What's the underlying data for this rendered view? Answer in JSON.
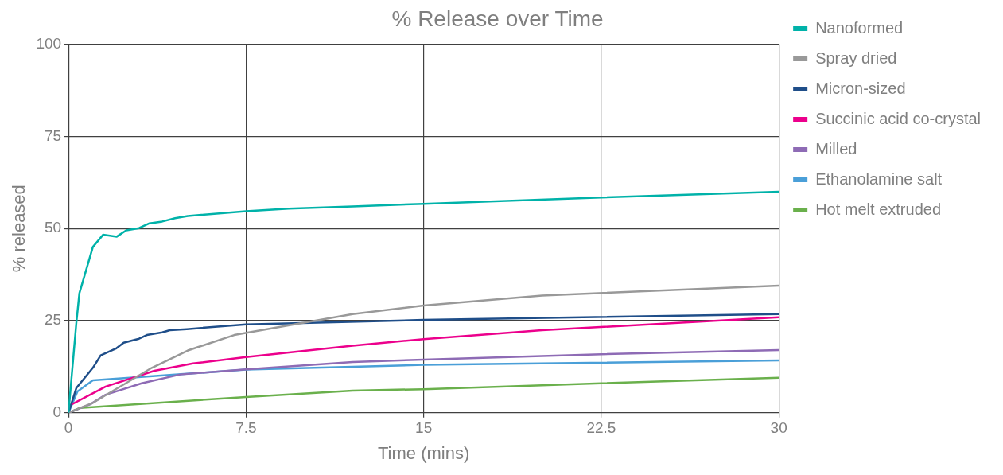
{
  "chart_data": {
    "type": "line",
    "title": "% Release over Time",
    "xlabel": "Time (mins)",
    "ylabel": "% released",
    "xlim": [
      0,
      30
    ],
    "xticks": [
      0,
      7.5,
      15,
      22.5,
      30
    ],
    "ylim": [
      0,
      100
    ],
    "yticks": [
      0,
      25,
      50,
      75,
      100
    ],
    "grid": true,
    "legend": "right",
    "marker": "none",
    "line_style": "solid",
    "series": [
      {
        "name": "Nanoformed",
        "color": "#00b2a9",
        "x": [
          0,
          0.33,
          0.46,
          1.03,
          1.46,
          2.04,
          2.44,
          2.98,
          3.42,
          3.96,
          4.5,
          5.04,
          7.5,
          9.3,
          12,
          15,
          22.5,
          30
        ],
        "values": [
          0,
          24.3,
          32.4,
          45,
          48.3,
          47.8,
          49.5,
          50.1,
          51.4,
          51.9,
          52.8,
          53.4,
          54.7,
          55.4,
          56,
          56.7,
          58.4,
          60
        ]
      },
      {
        "name": "Spray dried",
        "color": "#999999",
        "x": [
          0,
          1.03,
          3.52,
          5.04,
          7,
          12,
          15,
          20,
          30
        ],
        "values": [
          0,
          2.7,
          12.2,
          16.9,
          21.1,
          26.8,
          29.1,
          31.8,
          34.5
        ]
      },
      {
        "name": "Micron-sized",
        "color": "#1f4e89",
        "x": [
          0,
          0.33,
          1.03,
          1.36,
          2,
          2.33,
          2.98,
          3.31,
          3.96,
          4.28,
          5,
          7.5,
          15,
          30
        ],
        "values": [
          0,
          6.7,
          12.2,
          15.6,
          17.4,
          19,
          20.1,
          21.1,
          21.8,
          22.4,
          22.7,
          24,
          25.2,
          26.8
        ]
      },
      {
        "name": "Succinic acid co-crystal",
        "color": "#ec008c",
        "x": [
          0,
          0.05,
          1.57,
          3.63,
          5.26,
          7.5,
          12,
          15,
          20,
          30
        ],
        "values": [
          0,
          2,
          7.1,
          11.4,
          13.4,
          15.1,
          18.2,
          20,
          22.4,
          25.9
        ]
      },
      {
        "name": "Milled",
        "color": "#8e6bb5",
        "x": [
          0,
          0.92,
          1.57,
          3.09,
          4.72,
          7.5,
          12,
          15,
          22.5,
          30
        ],
        "values": [
          0,
          2.3,
          4.9,
          8,
          10.4,
          11.8,
          13.8,
          14.4,
          15.9,
          17
        ]
      },
      {
        "name": "Ethanolamine salt",
        "color": "#4a9fd8",
        "x": [
          0,
          0.38,
          1.03,
          7.5,
          15,
          30
        ],
        "values": [
          0,
          5.8,
          8.8,
          11.7,
          13,
          14.2
        ]
      },
      {
        "name": "Hot melt extruded",
        "color": "#6ab04c",
        "x": [
          0,
          0.49,
          7.5,
          12,
          15,
          22.5,
          30
        ],
        "values": [
          0,
          1.3,
          4.3,
          6,
          6.4,
          8,
          9.5
        ]
      }
    ]
  }
}
